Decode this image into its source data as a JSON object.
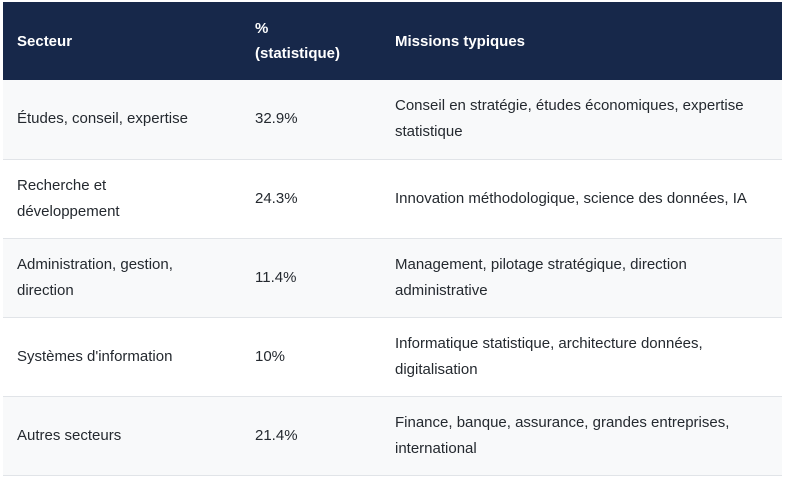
{
  "table": {
    "headers": [
      "Secteur",
      "% (statistique)",
      "Missions typiques"
    ],
    "rows": [
      {
        "secteur": "Études, conseil, expertise",
        "pct": "32.9%",
        "missions": "Conseil en stratégie, études économiques, expertise statistique"
      },
      {
        "secteur": "Recherche et développement",
        "pct": "24.3%",
        "missions": "Innovation méthodologique, science des données, IA"
      },
      {
        "secteur": "Administration, gestion, direction",
        "pct": "11.4%",
        "missions": "Management, pilotage stratégique, direction administrative"
      },
      {
        "secteur": "Systèmes d'information",
        "pct": "10%",
        "missions": "Informatique statistique, architecture données, digitalisation"
      },
      {
        "secteur": "Autres secteurs",
        "pct": "21.4%",
        "missions": "Finance, banque, assurance, grandes entreprises, international"
      }
    ]
  }
}
